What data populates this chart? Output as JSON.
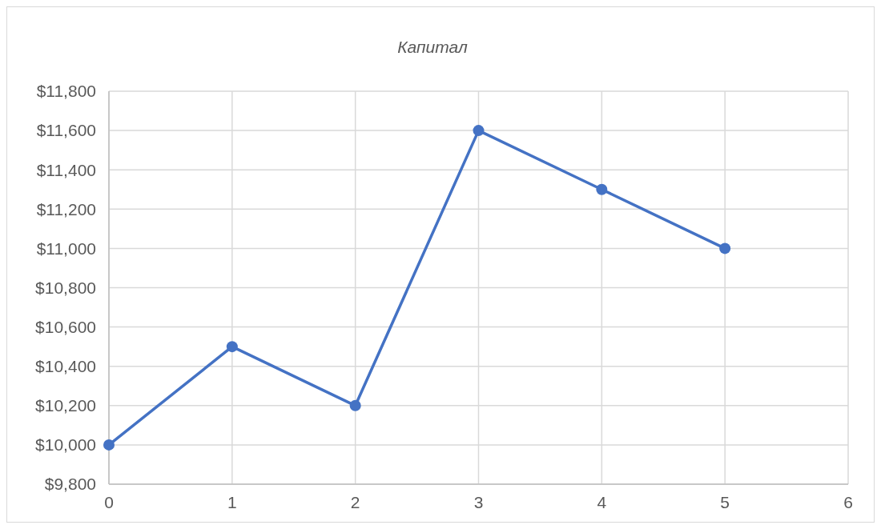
{
  "chart_data": {
    "type": "line",
    "title": "Капитал",
    "x": [
      0,
      1,
      2,
      3,
      4,
      5
    ],
    "series": [
      {
        "color": "#4472c4",
        "values": [
          10000,
          10500,
          10200,
          11600,
          11300,
          11000
        ]
      }
    ],
    "xlim": [
      0,
      6
    ],
    "xticks": [
      0,
      1,
      2,
      3,
      4,
      5,
      6
    ],
    "ylim": [
      9800,
      11800
    ],
    "yticks": [
      {
        "value": 9800,
        "label": "$9,800"
      },
      {
        "value": 10000,
        "label": "$10,000"
      },
      {
        "value": 10200,
        "label": "$10,200"
      },
      {
        "value": 10400,
        "label": "$10,400"
      },
      {
        "value": 10600,
        "label": "$10,600"
      },
      {
        "value": 10800,
        "label": "$10,800"
      },
      {
        "value": 11000,
        "label": "$11,000"
      },
      {
        "value": 11200,
        "label": "$11,200"
      },
      {
        "value": 11400,
        "label": "$11,400"
      },
      {
        "value": 11600,
        "label": "$11,600"
      },
      {
        "value": 11800,
        "label": "$11,800"
      }
    ],
    "grid": true,
    "marker": "circle",
    "line_style": "solid"
  }
}
